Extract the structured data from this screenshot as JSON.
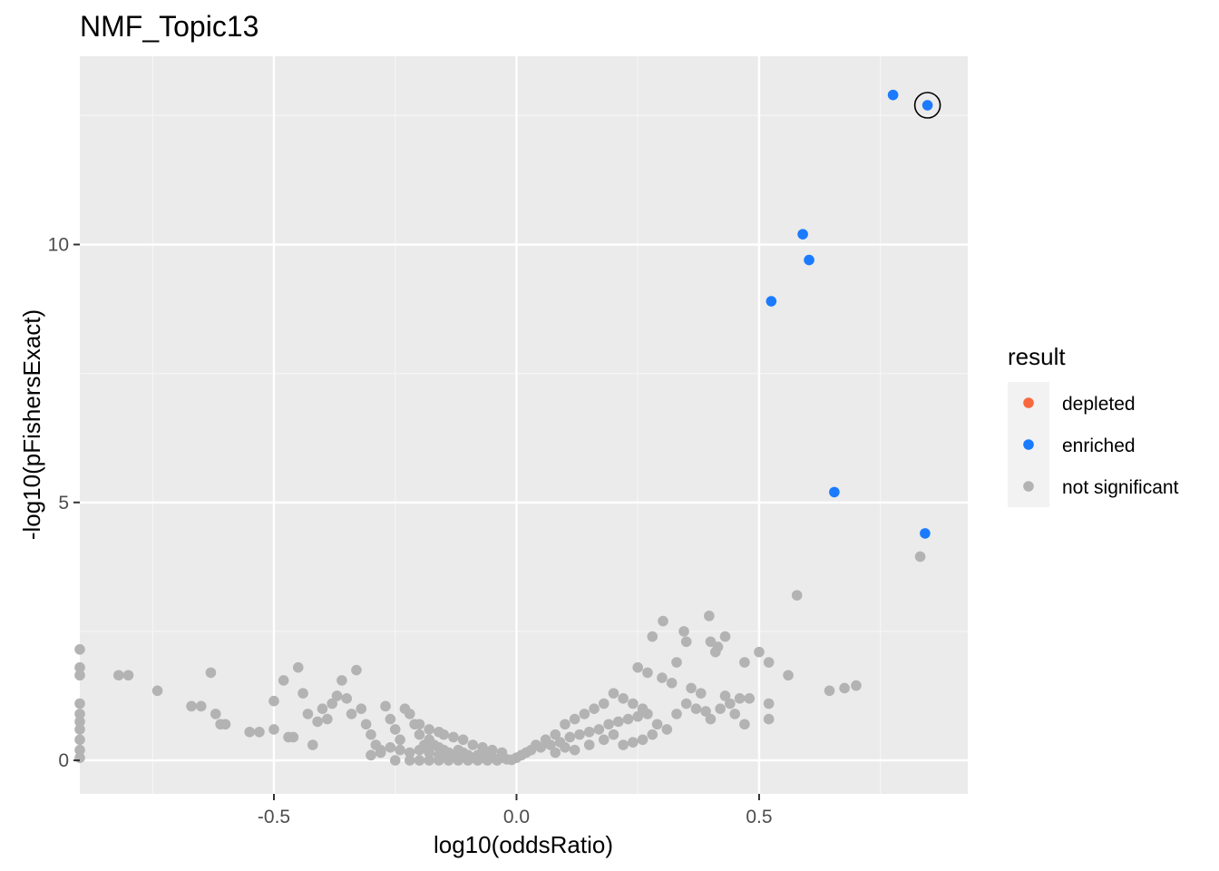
{
  "chart_data": {
    "type": "scatter",
    "title": "NMF_Topic13",
    "xlabel": "log10(oddsRatio)",
    "ylabel": "-log10(pFishersExact)",
    "xlim": [
      -0.9,
      0.93
    ],
    "ylim": [
      -0.65,
      13.65
    ],
    "x_ticks": [
      -0.5,
      0.0,
      0.5
    ],
    "x_tick_labels": [
      "-0.5",
      "0.0",
      "0.5"
    ],
    "y_ticks": [
      0,
      5,
      10
    ],
    "y_tick_labels": [
      "0",
      "5",
      "10"
    ],
    "grid": true,
    "legend": {
      "title": "result",
      "position": "right",
      "entries": [
        {
          "label": "depleted",
          "color": "#F8693F"
        },
        {
          "label": "enriched",
          "color": "#1B7BFF"
        },
        {
          "label": "not significant",
          "color": "#B3B3B3"
        }
      ]
    },
    "highlighted_point": {
      "x": 0.847,
      "y": 12.7
    },
    "series": [
      {
        "name": "enriched",
        "color": "#1B7BFF",
        "points": [
          [
            0.776,
            12.9
          ],
          [
            0.847,
            12.7
          ],
          [
            0.59,
            10.2
          ],
          [
            0.603,
            9.7
          ],
          [
            0.525,
            8.9
          ],
          [
            0.655,
            5.2
          ],
          [
            0.842,
            4.4
          ]
        ]
      },
      {
        "name": "depleted",
        "color": "#F8693F",
        "points": []
      },
      {
        "name": "not significant",
        "color": "#B3B3B3",
        "points": [
          [
            0.832,
            3.95
          ],
          [
            0.578,
            3.2
          ],
          [
            0.397,
            2.8
          ],
          [
            0.302,
            2.7
          ],
          [
            0.28,
            2.4
          ],
          [
            0.345,
            2.5
          ],
          [
            0.43,
            2.4
          ],
          [
            0.4,
            2.3
          ],
          [
            0.415,
            2.2
          ],
          [
            0.35,
            2.3
          ],
          [
            0.5,
            2.1
          ],
          [
            0.41,
            2.1
          ],
          [
            0.33,
            1.9
          ],
          [
            0.52,
            1.9
          ],
          [
            0.47,
            1.9
          ],
          [
            0.27,
            1.7
          ],
          [
            0.25,
            1.8
          ],
          [
            0.3,
            1.6
          ],
          [
            0.32,
            1.5
          ],
          [
            0.56,
            1.65
          ],
          [
            0.7,
            1.45
          ],
          [
            0.676,
            1.4
          ],
          [
            0.645,
            1.35
          ],
          [
            0.36,
            1.4
          ],
          [
            0.38,
            1.3
          ],
          [
            0.43,
            1.25
          ],
          [
            0.46,
            1.2
          ],
          [
            0.44,
            1.1
          ],
          [
            0.52,
            1.1
          ],
          [
            0.48,
            1.2
          ],
          [
            0.42,
            1.0
          ],
          [
            0.45,
            0.9
          ],
          [
            0.4,
            0.8
          ],
          [
            0.47,
            0.7
          ],
          [
            0.52,
            0.8
          ],
          [
            0.35,
            1.1
          ],
          [
            0.37,
            1.0
          ],
          [
            0.33,
            0.9
          ],
          [
            0.39,
            0.95
          ],
          [
            0.22,
            1.2
          ],
          [
            0.24,
            1.1
          ],
          [
            0.26,
            1.0
          ],
          [
            0.2,
            1.3
          ],
          [
            0.18,
            1.1
          ],
          [
            0.16,
            1.0
          ],
          [
            0.14,
            0.9
          ],
          [
            0.12,
            0.8
          ],
          [
            0.1,
            0.7
          ],
          [
            0.08,
            0.5
          ],
          [
            0.06,
            0.4
          ],
          [
            0.04,
            0.3
          ],
          [
            0.02,
            0.15
          ],
          [
            0.0,
            0.05
          ],
          [
            0.01,
            0.1
          ],
          [
            0.03,
            0.2
          ],
          [
            0.05,
            0.25
          ],
          [
            0.07,
            0.3
          ],
          [
            0.09,
            0.35
          ],
          [
            0.11,
            0.45
          ],
          [
            0.13,
            0.5
          ],
          [
            0.15,
            0.55
          ],
          [
            0.17,
            0.6
          ],
          [
            0.19,
            0.7
          ],
          [
            0.21,
            0.75
          ],
          [
            0.23,
            0.8
          ],
          [
            0.25,
            0.85
          ],
          [
            0.27,
            0.9
          ],
          [
            0.29,
            0.7
          ],
          [
            0.31,
            0.6
          ],
          [
            0.15,
            0.3
          ],
          [
            0.18,
            0.4
          ],
          [
            0.2,
            0.5
          ],
          [
            0.22,
            0.3
          ],
          [
            0.24,
            0.35
          ],
          [
            0.26,
            0.4
          ],
          [
            0.28,
            0.5
          ],
          [
            0.12,
            0.2
          ],
          [
            0.1,
            0.25
          ],
          [
            0.08,
            0.15
          ],
          [
            -0.9,
            2.15
          ],
          [
            -0.9,
            1.8
          ],
          [
            -0.9,
            1.65
          ],
          [
            -0.9,
            1.1
          ],
          [
            -0.9,
            0.9
          ],
          [
            -0.9,
            0.75
          ],
          [
            -0.9,
            0.6
          ],
          [
            -0.9,
            0.4
          ],
          [
            -0.9,
            0.2
          ],
          [
            -0.9,
            0.05
          ],
          [
            -0.82,
            1.65
          ],
          [
            -0.8,
            1.65
          ],
          [
            -0.74,
            1.35
          ],
          [
            -0.67,
            1.05
          ],
          [
            -0.65,
            1.05
          ],
          [
            -0.63,
            1.7
          ],
          [
            -0.62,
            0.9
          ],
          [
            -0.61,
            0.7
          ],
          [
            -0.6,
            0.7
          ],
          [
            -0.55,
            0.55
          ],
          [
            -0.53,
            0.55
          ],
          [
            -0.5,
            0.6
          ],
          [
            -0.5,
            1.15
          ],
          [
            -0.48,
            1.55
          ],
          [
            -0.47,
            0.45
          ],
          [
            -0.46,
            0.45
          ],
          [
            -0.45,
            1.8
          ],
          [
            -0.44,
            1.3
          ],
          [
            -0.43,
            0.9
          ],
          [
            -0.42,
            0.3
          ],
          [
            -0.41,
            0.75
          ],
          [
            -0.4,
            1.0
          ],
          [
            -0.39,
            0.8
          ],
          [
            -0.38,
            1.1
          ],
          [
            -0.37,
            1.25
          ],
          [
            -0.36,
            1.55
          ],
          [
            -0.35,
            1.2
          ],
          [
            -0.34,
            0.9
          ],
          [
            -0.33,
            1.75
          ],
          [
            -0.32,
            1.0
          ],
          [
            -0.31,
            0.7
          ],
          [
            -0.3,
            0.5
          ],
          [
            -0.29,
            0.3
          ],
          [
            -0.28,
            0.15
          ],
          [
            -0.27,
            1.05
          ],
          [
            -0.26,
            0.8
          ],
          [
            -0.25,
            0.6
          ],
          [
            -0.24,
            0.4
          ],
          [
            -0.23,
            1.0
          ],
          [
            -0.22,
            0.9
          ],
          [
            -0.21,
            0.7
          ],
          [
            -0.2,
            0.5
          ],
          [
            -0.19,
            0.3
          ],
          [
            -0.18,
            0.4
          ],
          [
            -0.17,
            0.3
          ],
          [
            -0.16,
            0.25
          ],
          [
            -0.15,
            0.2
          ],
          [
            -0.14,
            0.15
          ],
          [
            -0.13,
            0.1
          ],
          [
            -0.12,
            0.2
          ],
          [
            -0.11,
            0.15
          ],
          [
            -0.1,
            0.1
          ],
          [
            -0.09,
            0.05
          ],
          [
            -0.08,
            0.1
          ],
          [
            -0.07,
            0.05
          ],
          [
            -0.06,
            0.1
          ],
          [
            -0.05,
            0.05
          ],
          [
            -0.04,
            0.02
          ],
          [
            -0.03,
            0.05
          ],
          [
            -0.02,
            0.02
          ],
          [
            -0.01,
            0.01
          ],
          [
            -0.25,
            0.0
          ],
          [
            -0.22,
            0.0
          ],
          [
            -0.2,
            0.0
          ],
          [
            -0.18,
            0.0
          ],
          [
            -0.16,
            0.0
          ],
          [
            -0.14,
            0.0
          ],
          [
            -0.12,
            0.0
          ],
          [
            -0.1,
            0.0
          ],
          [
            -0.08,
            0.0
          ],
          [
            -0.06,
            0.0
          ],
          [
            -0.04,
            0.0
          ],
          [
            -0.3,
            0.1
          ],
          [
            -0.28,
            0.2
          ],
          [
            -0.26,
            0.25
          ],
          [
            -0.24,
            0.2
          ],
          [
            -0.22,
            0.15
          ],
          [
            -0.2,
            0.2
          ],
          [
            -0.18,
            0.15
          ],
          [
            -0.16,
            0.1
          ],
          [
            -0.14,
            0.05
          ],
          [
            -0.12,
            0.05
          ],
          [
            -0.15,
            0.5
          ],
          [
            -0.13,
            0.45
          ],
          [
            -0.11,
            0.4
          ],
          [
            -0.09,
            0.3
          ],
          [
            -0.07,
            0.25
          ],
          [
            -0.05,
            0.2
          ],
          [
            -0.03,
            0.15
          ],
          [
            -0.2,
            0.7
          ],
          [
            -0.18,
            0.6
          ],
          [
            -0.16,
            0.55
          ]
        ]
      }
    ]
  }
}
